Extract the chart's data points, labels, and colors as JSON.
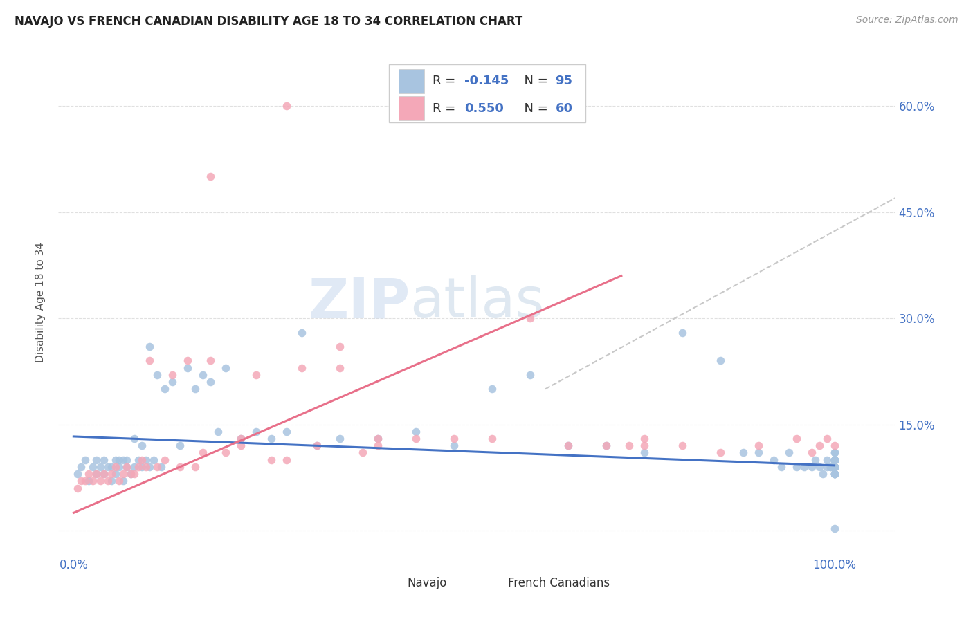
{
  "title": "NAVAJO VS FRENCH CANADIAN DISABILITY AGE 18 TO 34 CORRELATION CHART",
  "source": "Source: ZipAtlas.com",
  "ylabel": "Disability Age 18 to 34",
  "watermark_zip": "ZIP",
  "watermark_atlas": "atlas",
  "navajo_R": -0.145,
  "navajo_N": 95,
  "french_R": 0.55,
  "french_N": 60,
  "navajo_color": "#a8c4e0",
  "french_color": "#f4a8b8",
  "navajo_line_color": "#4472c4",
  "french_line_color": "#e8708a",
  "trend_dashed_color": "#c8c8c8",
  "background_color": "#ffffff",
  "grid_color": "#e0e0e0",
  "tick_color": "#4472c4",
  "ylabel_color": "#555555",
  "title_color": "#222222",
  "source_color": "#999999",
  "legend_text_color": "#333333",
  "navajo_points_x": [
    0.005,
    0.01,
    0.015,
    0.02,
    0.025,
    0.03,
    0.03,
    0.035,
    0.04,
    0.04,
    0.045,
    0.05,
    0.05,
    0.055,
    0.055,
    0.06,
    0.06,
    0.065,
    0.065,
    0.07,
    0.07,
    0.075,
    0.08,
    0.08,
    0.085,
    0.09,
    0.09,
    0.095,
    0.1,
    0.1,
    0.105,
    0.11,
    0.115,
    0.12,
    0.13,
    0.14,
    0.15,
    0.16,
    0.17,
    0.18,
    0.19,
    0.2,
    0.22,
    0.24,
    0.26,
    0.28,
    0.3,
    0.32,
    0.35,
    0.4,
    0.45,
    0.5,
    0.55,
    0.6,
    0.65,
    0.7,
    0.75,
    0.8,
    0.85,
    0.88,
    0.9,
    0.92,
    0.93,
    0.94,
    0.95,
    0.96,
    0.97,
    0.975,
    0.98,
    0.985,
    0.99,
    0.99,
    0.995,
    0.995,
    1.0,
    1.0,
    1.0,
    1.0,
    1.0,
    1.0,
    1.0,
    1.0,
    1.0,
    1.0,
    1.0,
    1.0,
    1.0,
    1.0,
    1.0,
    1.0,
    1.0,
    1.0,
    1.0,
    1.0,
    1.0
  ],
  "navajo_points_y": [
    0.08,
    0.09,
    0.1,
    0.07,
    0.09,
    0.08,
    0.1,
    0.09,
    0.1,
    0.08,
    0.09,
    0.07,
    0.09,
    0.1,
    0.08,
    0.09,
    0.1,
    0.1,
    0.07,
    0.09,
    0.1,
    0.08,
    0.13,
    0.09,
    0.1,
    0.12,
    0.09,
    0.1,
    0.26,
    0.09,
    0.1,
    0.22,
    0.09,
    0.2,
    0.21,
    0.12,
    0.23,
    0.2,
    0.22,
    0.21,
    0.14,
    0.23,
    0.13,
    0.14,
    0.13,
    0.14,
    0.28,
    0.12,
    0.13,
    0.13,
    0.14,
    0.12,
    0.2,
    0.22,
    0.12,
    0.12,
    0.11,
    0.28,
    0.24,
    0.11,
    0.11,
    0.1,
    0.09,
    0.11,
    0.09,
    0.09,
    0.09,
    0.1,
    0.09,
    0.08,
    0.09,
    0.1,
    0.09,
    0.09,
    0.1,
    0.08,
    0.09,
    0.1,
    0.09,
    0.08,
    0.09,
    0.1,
    0.08,
    0.09,
    0.1,
    0.11,
    0.09,
    0.08,
    0.1,
    0.09,
    0.08,
    0.1,
    0.09,
    0.003,
    0.11
  ],
  "french_points_x": [
    0.005,
    0.01,
    0.015,
    0.02,
    0.025,
    0.03,
    0.035,
    0.04,
    0.045,
    0.05,
    0.055,
    0.06,
    0.065,
    0.07,
    0.075,
    0.08,
    0.085,
    0.09,
    0.095,
    0.1,
    0.11,
    0.12,
    0.13,
    0.14,
    0.15,
    0.16,
    0.17,
    0.18,
    0.2,
    0.22,
    0.24,
    0.26,
    0.28,
    0.3,
    0.32,
    0.35,
    0.38,
    0.4,
    0.45,
    0.5,
    0.55,
    0.6,
    0.65,
    0.7,
    0.73,
    0.75,
    0.8,
    0.85,
    0.9,
    0.95,
    0.97,
    0.98,
    0.99,
    1.0,
    0.35,
    0.4,
    0.18,
    0.22,
    0.28,
    0.75
  ],
  "french_points_y": [
    0.06,
    0.07,
    0.07,
    0.08,
    0.07,
    0.08,
    0.07,
    0.08,
    0.07,
    0.08,
    0.09,
    0.07,
    0.08,
    0.09,
    0.08,
    0.08,
    0.09,
    0.1,
    0.09,
    0.24,
    0.09,
    0.1,
    0.22,
    0.09,
    0.24,
    0.09,
    0.11,
    0.24,
    0.11,
    0.12,
    0.22,
    0.1,
    0.1,
    0.23,
    0.12,
    0.23,
    0.11,
    0.13,
    0.13,
    0.13,
    0.13,
    0.3,
    0.12,
    0.12,
    0.12,
    0.13,
    0.12,
    0.11,
    0.12,
    0.13,
    0.11,
    0.12,
    0.13,
    0.12,
    0.26,
    0.12,
    0.5,
    0.13,
    0.6,
    0.12
  ],
  "ylim_min": -0.035,
  "ylim_max": 0.68,
  "xlim_min": -0.02,
  "xlim_max": 1.08,
  "y_ticks": [
    0.0,
    0.15,
    0.3,
    0.45,
    0.6
  ],
  "y_tick_labels": [
    "",
    "15.0%",
    "30.0%",
    "45.0%",
    "60.0%"
  ],
  "x_ticks": [
    0.0,
    0.25,
    0.5,
    0.75,
    1.0
  ],
  "x_tick_labels": [
    "0.0%",
    "",
    "",
    "",
    "100.0%"
  ],
  "navajo_line_x": [
    0.0,
    1.0
  ],
  "navajo_line_y": [
    0.133,
    0.092
  ],
  "french_line_x": [
    0.0,
    0.72
  ],
  "french_line_y": [
    0.025,
    0.36
  ],
  "dashed_line_x": [
    0.62,
    1.08
  ],
  "dashed_line_y": [
    0.2,
    0.47
  ]
}
